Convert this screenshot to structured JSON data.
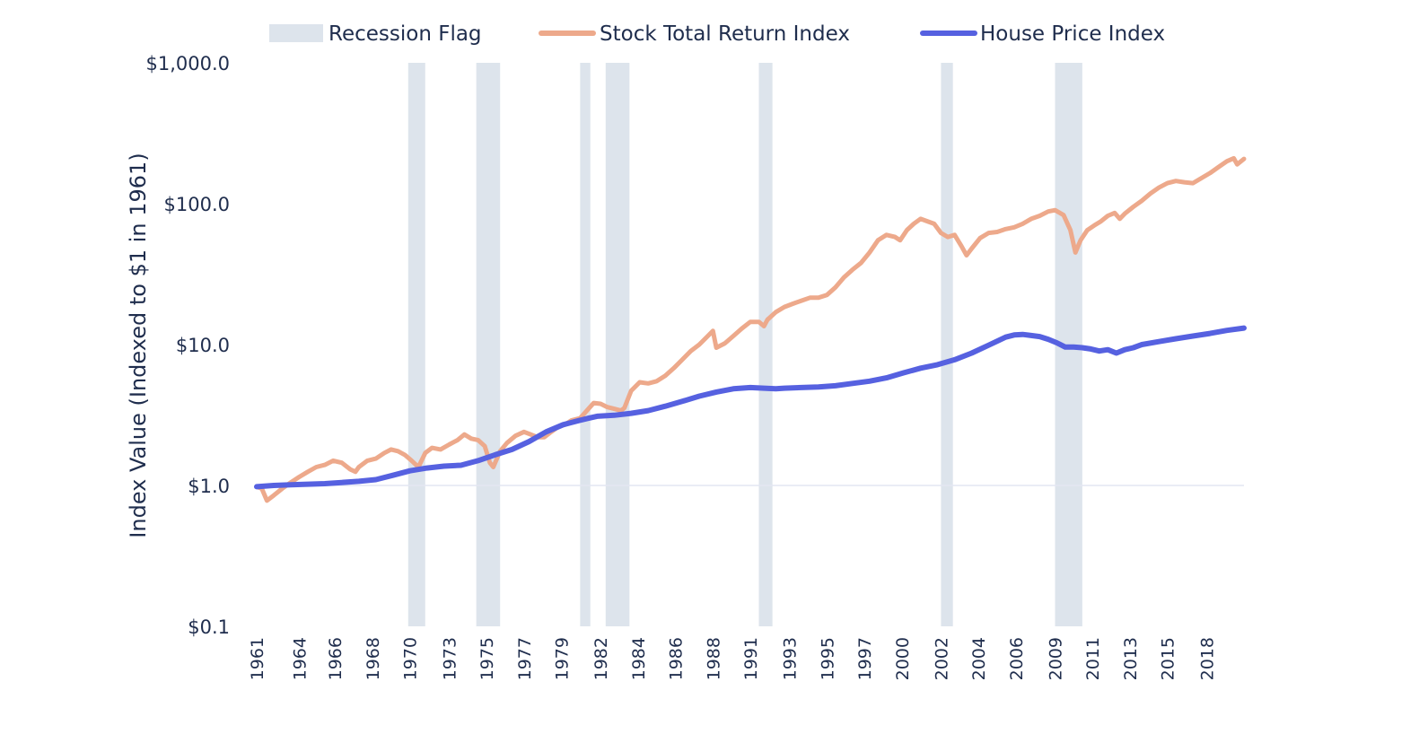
{
  "chart_data": {
    "type": "line",
    "scale": "log",
    "ylabel": "Index Value (Indexed to $1 in 1961)",
    "xlabel": "",
    "ylim": [
      0.1,
      1000
    ],
    "xlim": [
      1961.0,
      2019.0
    ],
    "y_tick_values": [
      0.1,
      1,
      10,
      100,
      1000
    ],
    "y_tick_labels": [
      "$0.1",
      "$1.0",
      "$10.0",
      "$100.0",
      "$1,000.0"
    ],
    "x_tick_values": [
      1961,
      1963.5,
      1965.6,
      1967.8,
      1970,
      1972.3,
      1974.5,
      1976.7,
      1978.9,
      1981.2,
      1983.4,
      1985.6,
      1987.8,
      1990,
      1992.3,
      1994.5,
      1996.7,
      1998.9,
      2001.2,
      2003.4,
      2005.6,
      2007.9,
      2010.1,
      2012.3,
      2014.5,
      2016.8,
      2018.9
    ],
    "x_tick_labels": [
      "1961",
      "1964",
      "1966",
      "1968",
      "1970",
      "1973",
      "1975",
      "1977",
      "1979",
      "1982",
      "1984",
      "1986",
      "1988",
      "1991",
      "1993",
      "1995",
      "1997",
      "2000",
      "2002",
      "2004",
      "2006",
      "2009",
      "2011",
      "2013",
      "2015",
      "2018",
      ""
    ],
    "legend": {
      "position": "top",
      "entries": [
        "Recession Flag",
        "Stock Total Return Index",
        "House Price Index"
      ]
    },
    "recessions": [
      [
        1969.9,
        1970.9
      ],
      [
        1973.9,
        1975.3
      ],
      [
        1980.0,
        1980.6
      ],
      [
        1981.5,
        1982.9
      ],
      [
        1990.5,
        1991.3
      ],
      [
        2001.2,
        2001.9
      ],
      [
        2007.9,
        2009.5
      ]
    ],
    "series": [
      {
        "name": "Stock Total Return Index",
        "color": "#eda98b",
        "x": [
          1961.0,
          1961.3,
          1961.6,
          1962.0,
          1962.5,
          1963.0,
          1963.5,
          1964.0,
          1964.5,
          1965.0,
          1965.5,
          1966.0,
          1966.5,
          1966.8,
          1967.0,
          1967.5,
          1968.0,
          1968.5,
          1968.9,
          1969.3,
          1969.7,
          1970.1,
          1970.5,
          1970.9,
          1971.3,
          1971.8,
          1972.3,
          1972.8,
          1973.2,
          1973.6,
          1974.0,
          1974.4,
          1974.7,
          1974.9,
          1975.3,
          1975.7,
          1976.2,
          1976.7,
          1977.1,
          1977.5,
          1977.9,
          1978.3,
          1978.7,
          1979.1,
          1979.5,
          1980.0,
          1980.4,
          1980.8,
          1981.2,
          1981.6,
          1982.0,
          1982.4,
          1982.6,
          1983.0,
          1983.5,
          1984.0,
          1984.5,
          1985.0,
          1985.5,
          1986.0,
          1986.5,
          1987.0,
          1987.5,
          1987.8,
          1988.0,
          1988.5,
          1989.0,
          1989.5,
          1990.0,
          1990.5,
          1990.8,
          1991.0,
          1991.5,
          1992.0,
          1992.5,
          1993.0,
          1993.5,
          1994.0,
          1994.5,
          1995.0,
          1995.5,
          1996.0,
          1996.5,
          1997.0,
          1997.5,
          1998.0,
          1998.5,
          1998.8,
          1999.2,
          1999.6,
          2000.0,
          2000.4,
          2000.8,
          2001.2,
          2001.6,
          2002.0,
          2002.4,
          2002.7,
          2003.0,
          2003.5,
          2004.0,
          2004.5,
          2005.0,
          2005.5,
          2006.0,
          2006.5,
          2007.0,
          2007.5,
          2007.9,
          2008.4,
          2008.8,
          2009.1,
          2009.4,
          2009.8,
          2010.2,
          2010.6,
          2011.0,
          2011.4,
          2011.7,
          2012.0,
          2012.5,
          2013.0,
          2013.5,
          2014.0,
          2014.5,
          2015.0,
          2015.5,
          2016.0,
          2016.5,
          2017.0,
          2017.5,
          2018.0,
          2018.4,
          2018.6,
          2019.0
        ],
        "values": [
          0.98,
          0.95,
          0.78,
          0.85,
          0.95,
          1.05,
          1.15,
          1.25,
          1.35,
          1.4,
          1.5,
          1.45,
          1.3,
          1.25,
          1.35,
          1.5,
          1.55,
          1.7,
          1.8,
          1.75,
          1.65,
          1.5,
          1.35,
          1.7,
          1.85,
          1.8,
          1.95,
          2.1,
          2.3,
          2.15,
          2.1,
          1.9,
          1.45,
          1.35,
          1.75,
          2.0,
          2.25,
          2.4,
          2.3,
          2.2,
          2.2,
          2.4,
          2.6,
          2.7,
          2.9,
          3.0,
          3.4,
          3.85,
          3.8,
          3.6,
          3.5,
          3.4,
          3.55,
          4.7,
          5.4,
          5.3,
          5.5,
          6.0,
          6.8,
          7.8,
          9.0,
          10.0,
          11.5,
          12.5,
          9.5,
          10.2,
          11.5,
          13.0,
          14.5,
          14.5,
          13.5,
          15.0,
          17.0,
          18.5,
          19.5,
          20.5,
          21.5,
          21.5,
          22.5,
          25.5,
          30.0,
          34.0,
          38.0,
          45.0,
          55.0,
          60.0,
          58.0,
          55.0,
          65.0,
          72.0,
          78.0,
          75.0,
          72.0,
          62.0,
          58.0,
          60.0,
          50.0,
          43.0,
          48.0,
          57.0,
          62.0,
          63.0,
          66.0,
          68.0,
          72.0,
          78.0,
          82.0,
          88.0,
          90.0,
          83.0,
          65.0,
          45.0,
          55.0,
          65.0,
          70.0,
          75.0,
          82.0,
          86.0,
          78.0,
          85.0,
          95.0,
          105.0,
          118.0,
          130.0,
          140.0,
          145.0,
          142.0,
          140.0,
          152.0,
          165.0,
          182.0,
          200.0,
          210.0,
          190.0,
          208.0
        ]
      },
      {
        "name": "House Price Index",
        "color": "#5661e0",
        "x": [
          1961.0,
          1962.0,
          1963.0,
          1964.0,
          1965.0,
          1966.0,
          1967.0,
          1968.0,
          1969.0,
          1970.0,
          1971.0,
          1972.0,
          1973.0,
          1974.0,
          1975.0,
          1976.0,
          1977.0,
          1978.0,
          1979.0,
          1980.0,
          1980.5,
          1981.0,
          1982.0,
          1983.0,
          1984.0,
          1985.0,
          1986.0,
          1987.0,
          1988.0,
          1989.0,
          1990.0,
          1990.8,
          1991.5,
          1992.0,
          1993.0,
          1994.0,
          1995.0,
          1996.0,
          1997.0,
          1998.0,
          1999.0,
          2000.0,
          2001.0,
          2002.0,
          2003.0,
          2004.0,
          2005.0,
          2005.5,
          2006.0,
          2006.5,
          2007.0,
          2007.5,
          2008.0,
          2008.5,
          2009.0,
          2009.5,
          2010.0,
          2010.5,
          2011.0,
          2011.5,
          2012.0,
          2012.5,
          2013.0,
          2014.0,
          2015.0,
          2016.0,
          2017.0,
          2018.0,
          2019.0
        ],
        "values": [
          0.98,
          1.0,
          1.01,
          1.02,
          1.03,
          1.05,
          1.07,
          1.1,
          1.18,
          1.27,
          1.33,
          1.37,
          1.39,
          1.5,
          1.65,
          1.8,
          2.05,
          2.4,
          2.7,
          2.9,
          3.0,
          3.1,
          3.15,
          3.25,
          3.4,
          3.65,
          3.95,
          4.3,
          4.6,
          4.85,
          4.95,
          4.9,
          4.85,
          4.9,
          4.95,
          5.0,
          5.1,
          5.3,
          5.5,
          5.8,
          6.3,
          6.8,
          7.2,
          7.8,
          8.7,
          9.9,
          11.3,
          11.7,
          11.8,
          11.6,
          11.4,
          10.9,
          10.3,
          9.6,
          9.6,
          9.5,
          9.3,
          9.0,
          9.2,
          8.7,
          9.2,
          9.5,
          10.0,
          10.5,
          11.0,
          11.5,
          12.0,
          12.6,
          13.1
        ]
      }
    ]
  }
}
